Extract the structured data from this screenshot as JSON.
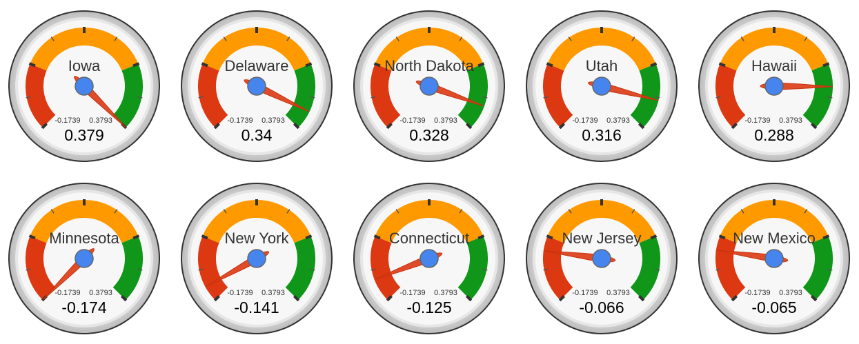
{
  "chart_data": {
    "type": "gauge",
    "min": -0.1739,
    "max": 0.3793,
    "min_label": "-0.1739",
    "max_label": "0.3793",
    "bands": [
      {
        "color": "#dc3912",
        "from": -0.1739,
        "to": -0.0356
      },
      {
        "color": "#ff9900",
        "from": -0.0356,
        "to": 0.241
      },
      {
        "color": "#109618",
        "from": 0.241,
        "to": 0.3793
      }
    ],
    "gauges": [
      {
        "label": "Iowa",
        "value": 0.379,
        "value_label": "0.379"
      },
      {
        "label": "Delaware",
        "value": 0.34,
        "value_label": "0.34"
      },
      {
        "label": "North Dakota",
        "value": 0.328,
        "value_label": "0.328"
      },
      {
        "label": "Utah",
        "value": 0.316,
        "value_label": "0.316"
      },
      {
        "label": "Hawaii",
        "value": 0.288,
        "value_label": "0.288"
      },
      {
        "label": "Minnesota",
        "value": -0.174,
        "value_label": "-0.174"
      },
      {
        "label": "New York",
        "value": -0.141,
        "value_label": "-0.141"
      },
      {
        "label": "Connecticut",
        "value": -0.125,
        "value_label": "-0.125"
      },
      {
        "label": "New Jersey",
        "value": -0.066,
        "value_label": "-0.066"
      },
      {
        "label": "New Mexico",
        "value": -0.065,
        "value_label": "-0.065"
      }
    ],
    "colors": {
      "needle": "#dc3912",
      "needle_outline": "#c63310",
      "hub": "#4684ee",
      "hub_outline": "#666666",
      "face": "#f7f7f7",
      "bezel_outer": "#333333",
      "bezel_ring": "#cccccc",
      "ticks": "#333333"
    }
  }
}
